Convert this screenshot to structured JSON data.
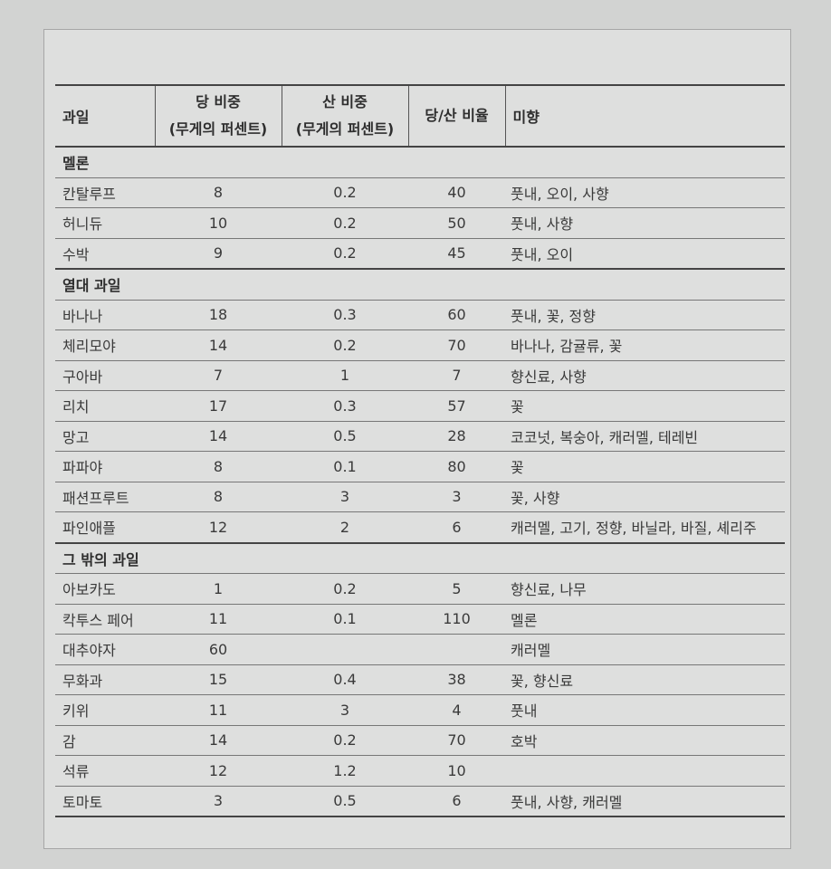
{
  "headers": {
    "fruit": "과일",
    "sugar": [
      "당 비중",
      "(무게의 퍼센트)"
    ],
    "acid": [
      "산 비중",
      "(무게의 퍼센트)"
    ],
    "ratio": "당/산 비율",
    "flavor": "미향"
  },
  "groups": [
    {
      "category": "멜론",
      "rows": [
        {
          "name": "칸탈루프",
          "sugar": "8",
          "acid": "0.2",
          "ratio": "40",
          "flavor": "풋내, 오이, 사향"
        },
        {
          "name": "허니듀",
          "sugar": "10",
          "acid": "0.2",
          "ratio": "50",
          "flavor": "풋내, 사향"
        },
        {
          "name": "수박",
          "sugar": "9",
          "acid": "0.2",
          "ratio": "45",
          "flavor": "풋내, 오이"
        }
      ]
    },
    {
      "category": "열대 과일",
      "rows": [
        {
          "name": "바나나",
          "sugar": "18",
          "acid": "0.3",
          "ratio": "60",
          "flavor": "풋내, 꽃, 정향"
        },
        {
          "name": "체리모야",
          "sugar": "14",
          "acid": "0.2",
          "ratio": "70",
          "flavor": "바나나, 감귤류, 꽃"
        },
        {
          "name": "구아바",
          "sugar": "7",
          "acid": "1",
          "ratio": "7",
          "flavor": "향신료, 사향"
        },
        {
          "name": "리치",
          "sugar": "17",
          "acid": "0.3",
          "ratio": "57",
          "flavor": "꽃"
        },
        {
          "name": "망고",
          "sugar": "14",
          "acid": "0.5",
          "ratio": "28",
          "flavor": "코코넛, 복숭아, 캐러멜, 테레빈"
        },
        {
          "name": "파파야",
          "sugar": "8",
          "acid": "0.1",
          "ratio": "80",
          "flavor": "꽃"
        },
        {
          "name": "패션프루트",
          "sugar": "8",
          "acid": "3",
          "ratio": "3",
          "flavor": "꽃, 사향"
        },
        {
          "name": "파인애플",
          "sugar": "12",
          "acid": "2",
          "ratio": "6",
          "flavor": "캐러멜, 고기, 정향, 바닐라, 바질, 셰리주"
        }
      ]
    },
    {
      "category": "그 밖의 과일",
      "rows": [
        {
          "name": "아보카도",
          "sugar": "1",
          "acid": "0.2",
          "ratio": "5",
          "flavor": "향신료, 나무"
        },
        {
          "name": "칵투스 페어",
          "sugar": "11",
          "acid": "0.1",
          "ratio": "110",
          "flavor": "멜론"
        },
        {
          "name": "대추야자",
          "sugar": "60",
          "acid": "",
          "ratio": "",
          "flavor": "캐러멜"
        },
        {
          "name": "무화과",
          "sugar": "15",
          "acid": "0.4",
          "ratio": "38",
          "flavor": "꽃, 향신료"
        },
        {
          "name": "키위",
          "sugar": "11",
          "acid": "3",
          "ratio": "4",
          "flavor": "풋내"
        },
        {
          "name": "감",
          "sugar": "14",
          "acid": "0.2",
          "ratio": "70",
          "flavor": "호박"
        },
        {
          "name": "석류",
          "sugar": "12",
          "acid": "1.2",
          "ratio": "10",
          "flavor": ""
        },
        {
          "name": "토마토",
          "sugar": "3",
          "acid": "0.5",
          "ratio": "6",
          "flavor": "풋내, 사향, 캐러멜"
        }
      ]
    }
  ]
}
